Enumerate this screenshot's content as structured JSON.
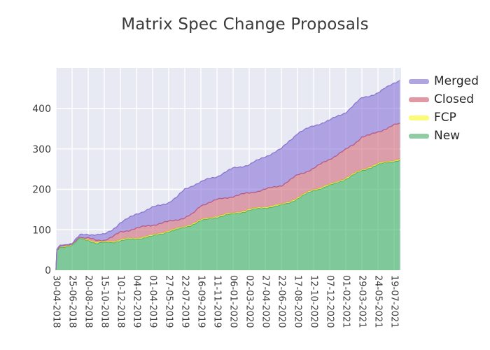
{
  "page": {
    "title": "Matrix Spec Change Proposals"
  },
  "colors": {
    "plot_background": "#e8eaf3",
    "grid": "#ffffff",
    "tick_text": "#3d3d3d",
    "title_text": "#3a3a3a",
    "legend_text": "#262626"
  },
  "chart_data": {
    "type": "area",
    "stacked": true,
    "title": "Matrix Spec Change Proposals",
    "xlabel": "",
    "ylabel": "",
    "ylim": [
      0,
      500
    ],
    "y_ticks": [
      0,
      100,
      200,
      300,
      400
    ],
    "grid": true,
    "legend_position": "right-top",
    "x_tick_interval_days": 56,
    "x_tick_labels": [
      "30-04-2018",
      "25-06-2018",
      "20-08-2018",
      "15-10-2018",
      "10-12-2018",
      "04-02-2019",
      "01-04-2019",
      "27-05-2019",
      "22-07-2019",
      "16-09-2019",
      "11-11-2019",
      "06-01-2020",
      "02-03-2020",
      "27-04-2020",
      "22-06-2020",
      "17-08-2020",
      "12-10-2020",
      "07-12-2020",
      "01-02-2021",
      "29-03-2021",
      "24-05-2021",
      "19-07-2021"
    ],
    "legend_items": [
      {
        "label": "Merged",
        "swatch_color": "#b1a4e3"
      },
      {
        "label": "Closed",
        "swatch_color": "#e298a3"
      },
      {
        "label": "FCP",
        "swatch_color": "#fbfb77"
      },
      {
        "label": "New",
        "swatch_color": "#90cda4"
      }
    ],
    "series_order_bottom_to_top": [
      "New",
      "FCP",
      "Closed",
      "Merged"
    ],
    "samples": {
      "days_since_first_tick": [
        0,
        3,
        14,
        56,
        84,
        112,
        140,
        168,
        196,
        224,
        252,
        280,
        336,
        364,
        392,
        420,
        448,
        476,
        504,
        532,
        560,
        616,
        672,
        728,
        784,
        812,
        840,
        896,
        952,
        1008,
        1036,
        1064,
        1092,
        1120,
        1176,
        1196
      ]
    },
    "series": [
      {
        "name": "New",
        "fill": "rgba(50,175,90,0.58)",
        "line": "#3fa06b",
        "values": [
          0,
          48,
          57,
          61,
          79,
          75,
          66,
          68,
          70,
          73,
          76,
          78,
          84,
          90,
          96,
          100,
          106,
          114,
          122,
          127,
          132,
          139,
          148,
          155,
          160,
          168,
          177,
          198,
          209,
          226,
          236,
          246,
          254,
          261,
          270,
          273
        ]
      },
      {
        "name": "FCP",
        "fill": "rgba(248,248,60,0.75)",
        "line": "#e6e24a",
        "values": [
          0,
          1.5,
          1.5,
          1.5,
          1.5,
          2,
          2.5,
          2.5,
          2.5,
          2.5,
          2.5,
          2.5,
          2.5,
          2.5,
          2.5,
          2.5,
          2.5,
          2.5,
          2.5,
          2.5,
          2.5,
          2.5,
          2.5,
          2.5,
          2.5,
          2.5,
          2.5,
          2.5,
          2.5,
          2.5,
          2.5,
          2.5,
          2.5,
          2.5,
          2.5,
          2.5
        ]
      },
      {
        "name": "Closed",
        "fill": "rgba(205,92,108,0.55)",
        "line": "#c4556b",
        "values": [
          0,
          0.5,
          0.5,
          0.5,
          0.5,
          2,
          5.5,
          4.5,
          9.5,
          18.5,
          20.5,
          23.5,
          25.5,
          23.5,
          21.5,
          22.5,
          21.5,
          22.5,
          35.5,
          38.5,
          39.5,
          41.5,
          40.5,
          42.5,
          47.5,
          51.5,
          55.5,
          51.5,
          63.5,
          69.5,
          73.5,
          81.5,
          77.5,
          78.5,
          86.5,
          86.5
        ]
      },
      {
        "name": "Merged",
        "fill": "rgba(135,110,215,0.58)",
        "line": "#8a76d0",
        "values": [
          0,
          2,
          3,
          3,
          6,
          10,
          14,
          13,
          18,
          24,
          29,
          35,
          43,
          45,
          48,
          55,
          70,
          71,
          58,
          58,
          58,
          69,
          70,
          81,
          90,
          98,
          104,
          105,
          96,
          93,
          96,
          96,
          98,
          96,
          105,
          108
        ]
      }
    ]
  }
}
